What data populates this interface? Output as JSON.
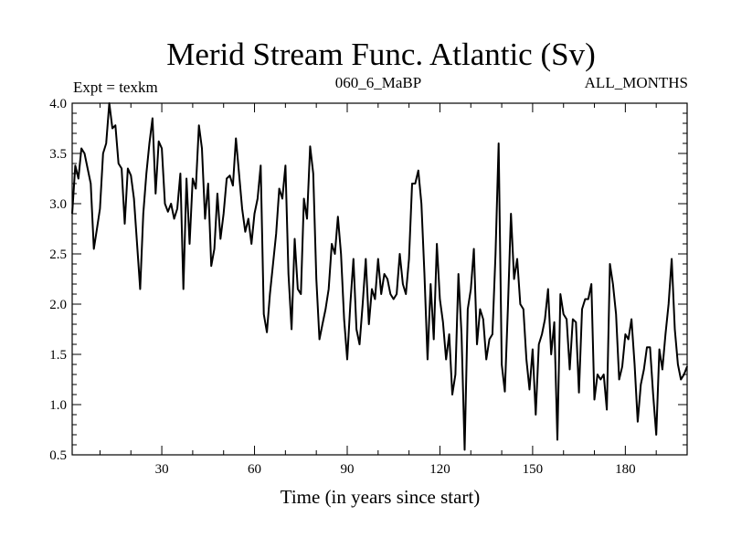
{
  "chart_data": {
    "type": "line",
    "title": "Merid Stream Func. Atlantic (Sv)",
    "subtitle_left": "Expt = texkm",
    "subtitle_center": "060_6_MaBP",
    "subtitle_right": "ALL_MONTHS",
    "xlabel": "Time (in years since start)",
    "ylabel": "",
    "xlim": [
      1,
      200
    ],
    "ylim": [
      0.5,
      4.0
    ],
    "xticks": [
      30,
      60,
      90,
      120,
      150,
      180
    ],
    "xtick_labels": [
      "30",
      "60",
      "90",
      "120",
      "150",
      "180"
    ],
    "yticks": [
      0.5,
      1.0,
      1.5,
      2.0,
      2.5,
      3.0,
      3.5,
      4.0
    ],
    "ytick_labels": [
      "0.5",
      "1.0",
      "1.5",
      "2.0",
      "2.5",
      "3.0",
      "3.5",
      "4.0"
    ],
    "series": [
      {
        "name": "Merid Stream Func. Atlantic",
        "x": [
          1,
          2,
          3,
          4,
          5,
          6,
          7,
          8,
          9,
          10,
          11,
          12,
          13,
          14,
          15,
          16,
          17,
          18,
          19,
          20,
          21,
          22,
          23,
          24,
          25,
          26,
          27,
          28,
          29,
          30,
          31,
          32,
          33,
          34,
          35,
          36,
          37,
          38,
          39,
          40,
          41,
          42,
          43,
          44,
          45,
          46,
          47,
          48,
          49,
          50,
          51,
          52,
          53,
          54,
          55,
          56,
          57,
          58,
          59,
          60,
          61,
          62,
          63,
          64,
          65,
          66,
          67,
          68,
          69,
          70,
          71,
          72,
          73,
          74,
          75,
          76,
          77,
          78,
          79,
          80,
          81,
          82,
          83,
          84,
          85,
          86,
          87,
          88,
          89,
          90,
          91,
          92,
          93,
          94,
          95,
          96,
          97,
          98,
          99,
          100,
          101,
          102,
          103,
          104,
          105,
          106,
          107,
          108,
          109,
          110,
          111,
          112,
          113,
          114,
          115,
          116,
          117,
          118,
          119,
          120,
          121,
          122,
          123,
          124,
          125,
          126,
          127,
          128,
          129,
          130,
          131,
          132,
          133,
          134,
          135,
          136,
          137,
          138,
          139,
          140,
          141,
          142,
          143,
          144,
          145,
          146,
          147,
          148,
          149,
          150,
          151,
          152,
          153,
          154,
          155,
          156,
          157,
          158,
          159,
          160,
          161,
          162,
          163,
          164,
          165,
          166,
          167,
          168,
          169,
          170,
          171,
          172,
          173,
          174,
          175,
          176,
          177,
          178,
          179,
          180,
          181,
          182,
          183,
          184,
          185,
          186,
          187,
          188,
          189,
          190,
          191,
          192,
          193,
          194,
          195,
          196,
          197,
          198,
          199,
          200
        ],
        "values": [
          2.9,
          3.38,
          3.25,
          3.55,
          3.5,
          3.35,
          3.2,
          2.55,
          2.75,
          2.95,
          3.5,
          3.6,
          4.0,
          3.75,
          3.78,
          3.4,
          3.35,
          2.8,
          3.35,
          3.28,
          3.05,
          2.6,
          2.15,
          2.9,
          3.3,
          3.6,
          3.85,
          3.1,
          3.62,
          3.55,
          3.0,
          2.92,
          3.0,
          2.85,
          2.95,
          3.3,
          2.15,
          3.25,
          2.6,
          3.25,
          3.15,
          3.78,
          3.55,
          2.85,
          3.2,
          2.38,
          2.55,
          3.1,
          2.65,
          2.9,
          3.25,
          3.28,
          3.18,
          3.65,
          3.3,
          2.95,
          2.72,
          2.85,
          2.6,
          2.9,
          3.05,
          3.38,
          1.9,
          1.72,
          2.1,
          2.4,
          2.7,
          3.15,
          3.05,
          3.38,
          2.3,
          1.75,
          2.65,
          2.15,
          2.1,
          3.05,
          2.85,
          3.57,
          3.3,
          2.25,
          1.65,
          1.8,
          1.95,
          2.15,
          2.6,
          2.5,
          2.87,
          2.5,
          1.85,
          1.45,
          2.0,
          2.45,
          1.75,
          1.6,
          2.0,
          2.45,
          1.8,
          2.15,
          2.05,
          2.45,
          2.1,
          2.3,
          2.25,
          2.1,
          2.05,
          2.1,
          2.5,
          2.2,
          2.1,
          2.45,
          3.2,
          3.2,
          3.33,
          3.0,
          2.3,
          1.45,
          2.2,
          1.65,
          2.6,
          2.05,
          1.82,
          1.45,
          1.7,
          1.1,
          1.3,
          2.3,
          1.7,
          0.55,
          1.95,
          2.15,
          2.55,
          1.6,
          1.95,
          1.85,
          1.45,
          1.65,
          1.7,
          2.5,
          3.6,
          1.4,
          1.13,
          1.95,
          2.9,
          2.25,
          2.45,
          2.0,
          1.95,
          1.45,
          1.15,
          1.55,
          0.9,
          1.6,
          1.7,
          1.85,
          2.15,
          1.5,
          1.82,
          0.65,
          2.1,
          1.9,
          1.85,
          1.35,
          1.85,
          1.82,
          1.12,
          1.95,
          2.05,
          2.05,
          2.2,
          1.05,
          1.3,
          1.25,
          1.3,
          0.95,
          2.4,
          2.2,
          1.9,
          1.25,
          1.38,
          1.7,
          1.65,
          1.85,
          1.4,
          0.83,
          1.2,
          1.35,
          1.57,
          1.57,
          1.1,
          0.7,
          1.55,
          1.35,
          1.7,
          2.0,
          2.45,
          1.75,
          1.4,
          1.25,
          1.3,
          1.38
        ]
      }
    ],
    "grid": false,
    "colors": {
      "line": "#000000",
      "background": "#ffffff"
    }
  }
}
